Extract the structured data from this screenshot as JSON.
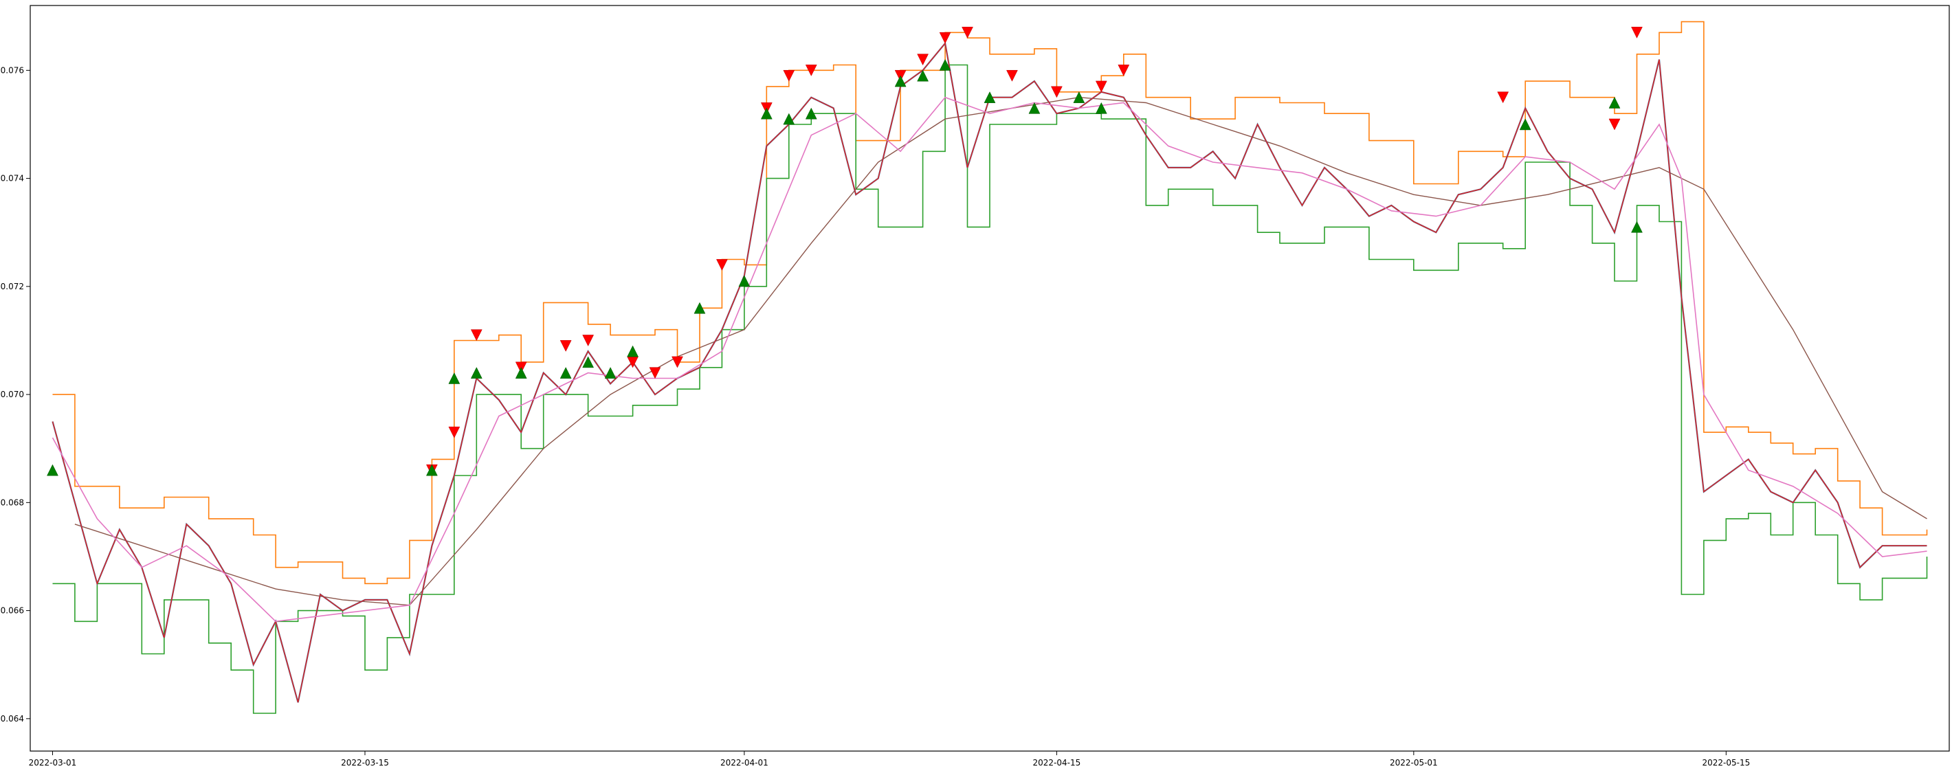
{
  "chart_data": {
    "type": "line",
    "title": "",
    "xlabel": "",
    "ylabel": "",
    "xlim": [
      "2022-02-28",
      "2022-05-25"
    ],
    "ylim": [
      0.0634,
      0.0772
    ],
    "xticks": [
      "2022-03-01",
      "2022-03-15",
      "2022-04-01",
      "2022-04-15",
      "2022-05-01",
      "2022-05-15"
    ],
    "yticks": [
      "0.064",
      "0.066",
      "0.068",
      "0.070",
      "0.072",
      "0.074",
      "0.076"
    ],
    "colors": {
      "price_blue": "#1f77b4",
      "upper_band": "#ff7f0e",
      "lower_band": "#2ca02c",
      "price_red": "#d62728",
      "long_ma": "#8c564b",
      "short_ma": "#e377c2",
      "sell_marker": "#ff0000",
      "buy_marker": "#008000"
    },
    "price": {
      "x": [
        "2022-03-01",
        "2022-03-02",
        "2022-03-03",
        "2022-03-04",
        "2022-03-05",
        "2022-03-06",
        "2022-03-07",
        "2022-03-08",
        "2022-03-09",
        "2022-03-10",
        "2022-03-11",
        "2022-03-12",
        "2022-03-13",
        "2022-03-14",
        "2022-03-15",
        "2022-03-16",
        "2022-03-17",
        "2022-03-18",
        "2022-03-19",
        "2022-03-20",
        "2022-03-21",
        "2022-03-22",
        "2022-03-23",
        "2022-03-24",
        "2022-03-25",
        "2022-03-26",
        "2022-03-27",
        "2022-03-28",
        "2022-03-29",
        "2022-03-30",
        "2022-03-31",
        "2022-04-01",
        "2022-04-02",
        "2022-04-03",
        "2022-04-04",
        "2022-04-05",
        "2022-04-06",
        "2022-04-07",
        "2022-04-08",
        "2022-04-09",
        "2022-04-10",
        "2022-04-11",
        "2022-04-12",
        "2022-04-13",
        "2022-04-14",
        "2022-04-15",
        "2022-04-16",
        "2022-04-17",
        "2022-04-18",
        "2022-04-19",
        "2022-04-20",
        "2022-04-21",
        "2022-04-22",
        "2022-04-23",
        "2022-04-24",
        "2022-04-25",
        "2022-04-26",
        "2022-04-27",
        "2022-04-28",
        "2022-04-29",
        "2022-04-30",
        "2022-05-01",
        "2022-05-02",
        "2022-05-03",
        "2022-05-04",
        "2022-05-05",
        "2022-05-06",
        "2022-05-07",
        "2022-05-08",
        "2022-05-09",
        "2022-05-10",
        "2022-05-11",
        "2022-05-12",
        "2022-05-13",
        "2022-05-14",
        "2022-05-15",
        "2022-05-16",
        "2022-05-17",
        "2022-05-18",
        "2022-05-19",
        "2022-05-20",
        "2022-05-21",
        "2022-05-22",
        "2022-05-23",
        "2022-05-24"
      ],
      "y": [
        0.0695,
        0.068,
        0.0665,
        0.0675,
        0.0668,
        0.0655,
        0.0676,
        0.0672,
        0.0665,
        0.065,
        0.0658,
        0.0643,
        0.0663,
        0.066,
        0.0662,
        0.0662,
        0.0652,
        0.0672,
        0.0685,
        0.0703,
        0.0699,
        0.0693,
        0.0704,
        0.07,
        0.0708,
        0.0702,
        0.0706,
        0.07,
        0.0703,
        0.0705,
        0.0712,
        0.0722,
        0.0746,
        0.075,
        0.0755,
        0.0753,
        0.0737,
        0.074,
        0.0757,
        0.076,
        0.0765,
        0.0742,
        0.0755,
        0.0755,
        0.0758,
        0.0752,
        0.0753,
        0.0756,
        0.0755,
        0.0748,
        0.0742,
        0.0742,
        0.0745,
        0.074,
        0.075,
        0.0742,
        0.0735,
        0.0742,
        0.0738,
        0.0733,
        0.0735,
        0.0732,
        0.073,
        0.0737,
        0.0738,
        0.0742,
        0.0753,
        0.0745,
        0.074,
        0.0738,
        0.073,
        0.0745,
        0.0762,
        0.0718,
        0.0682,
        0.0685,
        0.0688,
        0.0682,
        0.068,
        0.0686,
        0.068,
        0.0668,
        0.0672,
        0.0672,
        0.0672
      ]
    },
    "upper_band": {
      "x": [
        "2022-03-01",
        "2022-03-02",
        "2022-03-04",
        "2022-03-06",
        "2022-03-07",
        "2022-03-08",
        "2022-03-10",
        "2022-03-11",
        "2022-03-12",
        "2022-03-14",
        "2022-03-15",
        "2022-03-16",
        "2022-03-17",
        "2022-03-18",
        "2022-03-19",
        "2022-03-21",
        "2022-03-22",
        "2022-03-23",
        "2022-03-25",
        "2022-03-26",
        "2022-03-28",
        "2022-03-29",
        "2022-03-30",
        "2022-03-31",
        "2022-04-01",
        "2022-04-02",
        "2022-04-03",
        "2022-04-05",
        "2022-04-06",
        "2022-04-07",
        "2022-04-08",
        "2022-04-10",
        "2022-04-11",
        "2022-04-12",
        "2022-04-14",
        "2022-04-15",
        "2022-04-17",
        "2022-04-18",
        "2022-04-19",
        "2022-04-21",
        "2022-04-23",
        "2022-04-25",
        "2022-04-27",
        "2022-04-29",
        "2022-05-01",
        "2022-05-03",
        "2022-05-05",
        "2022-05-06",
        "2022-05-08",
        "2022-05-10",
        "2022-05-11",
        "2022-05-12",
        "2022-05-13",
        "2022-05-14",
        "2022-05-15",
        "2022-05-16",
        "2022-05-17",
        "2022-05-18",
        "2022-05-19",
        "2022-05-20",
        "2022-05-21",
        "2022-05-22",
        "2022-05-24"
      ],
      "y": [
        0.07,
        0.0683,
        0.0679,
        0.0681,
        0.0681,
        0.0677,
        0.0674,
        0.0668,
        0.0669,
        0.0666,
        0.0665,
        0.0666,
        0.0673,
        0.0688,
        0.071,
        0.0711,
        0.0706,
        0.0717,
        0.0713,
        0.0711,
        0.0712,
        0.0706,
        0.0716,
        0.0725,
        0.0724,
        0.0757,
        0.076,
        0.0761,
        0.0747,
        0.0747,
        0.076,
        0.0767,
        0.0766,
        0.0763,
        0.0764,
        0.0756,
        0.0759,
        0.0763,
        0.0755,
        0.0751,
        0.0755,
        0.0754,
        0.0752,
        0.0747,
        0.0739,
        0.0745,
        0.0744,
        0.0758,
        0.0755,
        0.0752,
        0.0763,
        0.0767,
        0.0769,
        0.0693,
        0.0694,
        0.0693,
        0.0691,
        0.0689,
        0.069,
        0.0684,
        0.0679,
        0.0674,
        0.0675
      ]
    },
    "lower_band": {
      "x": [
        "2022-03-01",
        "2022-03-02",
        "2022-03-03",
        "2022-03-05",
        "2022-03-06",
        "2022-03-08",
        "2022-03-09",
        "2022-03-10",
        "2022-03-11",
        "2022-03-12",
        "2022-03-14",
        "2022-03-15",
        "2022-03-16",
        "2022-03-17",
        "2022-03-19",
        "2022-03-20",
        "2022-03-22",
        "2022-03-23",
        "2022-03-25",
        "2022-03-27",
        "2022-03-29",
        "2022-03-30",
        "2022-03-31",
        "2022-04-01",
        "2022-04-02",
        "2022-04-03",
        "2022-04-04",
        "2022-04-06",
        "2022-04-07",
        "2022-04-09",
        "2022-04-10",
        "2022-04-11",
        "2022-04-12",
        "2022-04-13",
        "2022-04-15",
        "2022-04-17",
        "2022-04-19",
        "2022-04-20",
        "2022-04-22",
        "2022-04-24",
        "2022-04-25",
        "2022-04-27",
        "2022-04-29",
        "2022-05-01",
        "2022-05-03",
        "2022-05-05",
        "2022-05-06",
        "2022-05-08",
        "2022-05-09",
        "2022-05-10",
        "2022-05-11",
        "2022-05-12",
        "2022-05-13",
        "2022-05-14",
        "2022-05-15",
        "2022-05-16",
        "2022-05-17",
        "2022-05-18",
        "2022-05-19",
        "2022-05-20",
        "2022-05-21",
        "2022-05-22",
        "2022-05-24"
      ],
      "y": [
        0.0665,
        0.0658,
        0.0665,
        0.0652,
        0.0662,
        0.0654,
        0.0649,
        0.0641,
        0.0658,
        0.066,
        0.0659,
        0.0649,
        0.0655,
        0.0663,
        0.0685,
        0.07,
        0.069,
        0.07,
        0.0696,
        0.0698,
        0.0701,
        0.0705,
        0.0712,
        0.072,
        0.074,
        0.075,
        0.0752,
        0.0738,
        0.0731,
        0.0745,
        0.0761,
        0.0731,
        0.075,
        0.075,
        0.0752,
        0.0751,
        0.0735,
        0.0738,
        0.0735,
        0.073,
        0.0728,
        0.0731,
        0.0725,
        0.0723,
        0.0728,
        0.0727,
        0.0743,
        0.0735,
        0.0728,
        0.0721,
        0.0735,
        0.0732,
        0.0663,
        0.0673,
        0.0677,
        0.0678,
        0.0674,
        0.068,
        0.0674,
        0.0665,
        0.0662,
        0.0666,
        0.067
      ]
    },
    "short_ma": {
      "x": [
        "2022-03-01",
        "2022-03-03",
        "2022-03-05",
        "2022-03-07",
        "2022-03-09",
        "2022-03-11",
        "2022-03-13",
        "2022-03-15",
        "2022-03-17",
        "2022-03-19",
        "2022-03-21",
        "2022-03-23",
        "2022-03-25",
        "2022-03-27",
        "2022-03-29",
        "2022-03-31",
        "2022-04-02",
        "2022-04-04",
        "2022-04-06",
        "2022-04-08",
        "2022-04-10",
        "2022-04-12",
        "2022-04-14",
        "2022-04-16",
        "2022-04-18",
        "2022-04-20",
        "2022-04-22",
        "2022-04-24",
        "2022-04-26",
        "2022-04-28",
        "2022-04-30",
        "2022-05-02",
        "2022-05-04",
        "2022-05-06",
        "2022-05-08",
        "2022-05-10",
        "2022-05-12",
        "2022-05-13",
        "2022-05-14",
        "2022-05-16",
        "2022-05-18",
        "2022-05-20",
        "2022-05-22",
        "2022-05-24"
      ],
      "y": [
        0.0692,
        0.0677,
        0.0668,
        0.0672,
        0.0666,
        0.0658,
        0.0659,
        0.066,
        0.0661,
        0.0678,
        0.0696,
        0.07,
        0.0704,
        0.0703,
        0.0703,
        0.0708,
        0.0728,
        0.0748,
        0.0752,
        0.0745,
        0.0755,
        0.0752,
        0.0754,
        0.0753,
        0.0754,
        0.0746,
        0.0743,
        0.0742,
        0.0741,
        0.0738,
        0.0734,
        0.0733,
        0.0735,
        0.0744,
        0.0743,
        0.0738,
        0.075,
        0.074,
        0.07,
        0.0686,
        0.0683,
        0.0678,
        0.067,
        0.0671
      ]
    },
    "long_ma": {
      "x": [
        "2022-03-02",
        "2022-03-05",
        "2022-03-08",
        "2022-03-11",
        "2022-03-14",
        "2022-03-17",
        "2022-03-20",
        "2022-03-23",
        "2022-03-26",
        "2022-03-29",
        "2022-04-01",
        "2022-04-04",
        "2022-04-07",
        "2022-04-10",
        "2022-04-13",
        "2022-04-16",
        "2022-04-19",
        "2022-04-22",
        "2022-04-25",
        "2022-04-28",
        "2022-05-01",
        "2022-05-04",
        "2022-05-07",
        "2022-05-10",
        "2022-05-12",
        "2022-05-14",
        "2022-05-16",
        "2022-05-18",
        "2022-05-20",
        "2022-05-22",
        "2022-05-24"
      ],
      "y": [
        0.0676,
        0.0672,
        0.0668,
        0.0664,
        0.0662,
        0.0661,
        0.0675,
        0.069,
        0.07,
        0.0707,
        0.0712,
        0.0728,
        0.0743,
        0.0751,
        0.0753,
        0.0755,
        0.0754,
        0.075,
        0.0746,
        0.0741,
        0.0737,
        0.0735,
        0.0737,
        0.074,
        0.0742,
        0.0738,
        0.0725,
        0.0712,
        0.0697,
        0.0682,
        0.0677
      ]
    },
    "sell_signals": {
      "x": [
        "2022-03-18",
        "2022-03-19",
        "2022-03-20",
        "2022-03-22",
        "2022-03-24",
        "2022-03-25",
        "2022-03-27",
        "2022-03-28",
        "2022-03-29",
        "2022-03-31",
        "2022-04-02",
        "2022-04-03",
        "2022-04-04",
        "2022-04-08",
        "2022-04-09",
        "2022-04-10",
        "2022-04-11",
        "2022-04-13",
        "2022-04-15",
        "2022-04-17",
        "2022-04-18",
        "2022-05-05",
        "2022-05-10",
        "2022-05-11"
      ],
      "y": [
        0.0686,
        0.0693,
        0.0711,
        0.0705,
        0.0709,
        0.071,
        0.0706,
        0.0704,
        0.0706,
        0.0724,
        0.0753,
        0.0759,
        0.076,
        0.0759,
        0.0762,
        0.0766,
        0.0767,
        0.0759,
        0.0756,
        0.0757,
        0.076,
        0.0755,
        0.075,
        0.0767
      ]
    },
    "buy_signals": {
      "x": [
        "2022-03-01",
        "2022-03-18",
        "2022-03-19",
        "2022-03-20",
        "2022-03-22",
        "2022-03-24",
        "2022-03-25",
        "2022-03-26",
        "2022-03-27",
        "2022-03-30",
        "2022-04-01",
        "2022-04-02",
        "2022-04-03",
        "2022-04-04",
        "2022-04-08",
        "2022-04-09",
        "2022-04-10",
        "2022-04-12",
        "2022-04-14",
        "2022-04-16",
        "2022-04-17",
        "2022-05-06",
        "2022-05-10",
        "2022-05-11"
      ],
      "y": [
        0.0686,
        0.0686,
        0.0703,
        0.0704,
        0.0704,
        0.0704,
        0.0706,
        0.0704,
        0.0708,
        0.0716,
        0.0721,
        0.0752,
        0.0751,
        0.0752,
        0.0758,
        0.0759,
        0.0761,
        0.0755,
        0.0753,
        0.0755,
        0.0753,
        0.075,
        0.0754,
        0.0731
      ]
    }
  }
}
